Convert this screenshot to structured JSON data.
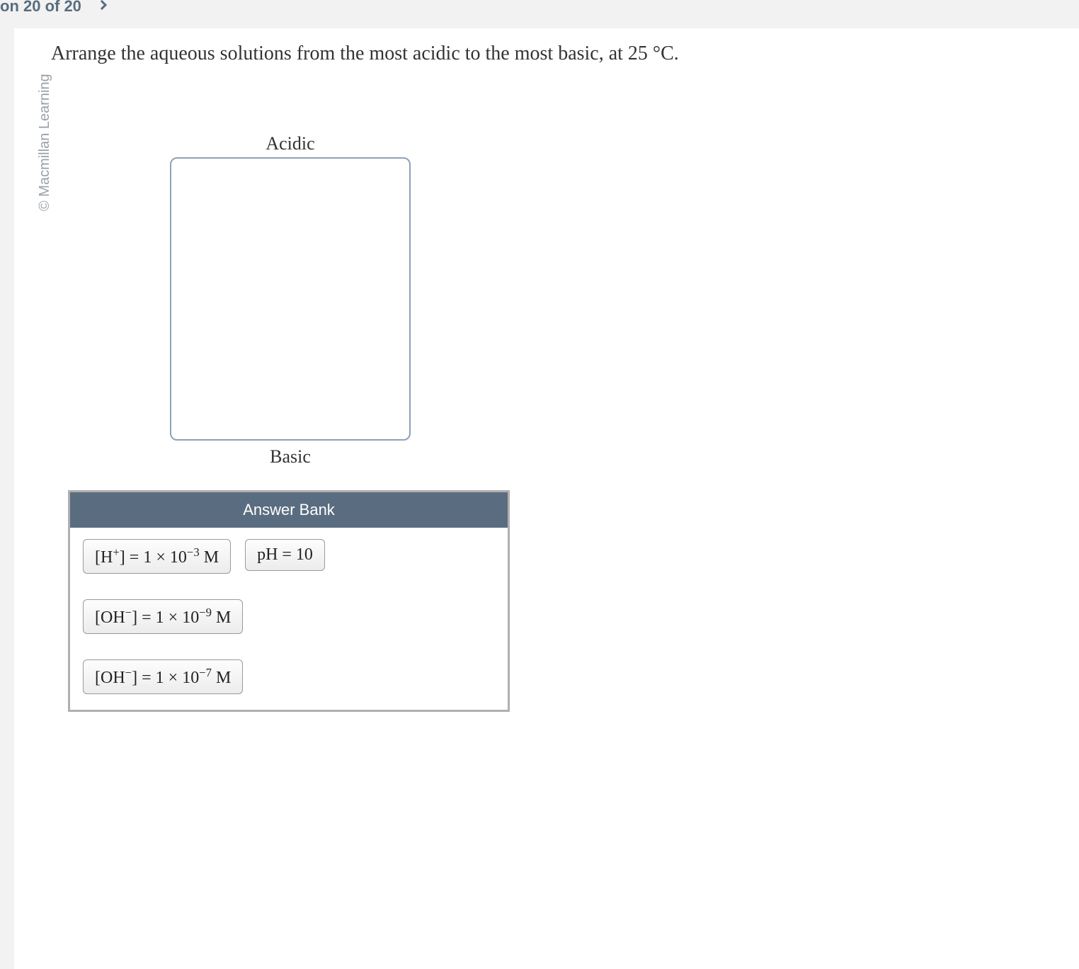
{
  "breadcrumb": {
    "progress": "on 20 of 20"
  },
  "watermark": "© Macmillan Learning",
  "prompt": "Arrange the aqueous solutions from the most acidic to the most basic, at 25 °C.",
  "zone": {
    "top_label": "Acidic",
    "bottom_label": "Basic",
    "border_color": "#8fa2b5",
    "background": "#ffffff"
  },
  "answer_bank": {
    "header": "Answer Bank",
    "header_bg": "#5a6d80",
    "header_text_color": "#ffffff",
    "border_color": "#b0b0b0",
    "chips": [
      {
        "id": "h-plus",
        "html": "[H<sup>+</sup>] = 1 × 10<sup>−3</sup> M"
      },
      {
        "id": "ph-10",
        "html": "pH = 10"
      },
      {
        "id": "oh-9",
        "html": "[OH<sup>−</sup>] = 1 × 10<sup>−9</sup> M"
      },
      {
        "id": "oh-7",
        "html": "[OH<sup>−</sup>] = 1 × 10<sup>−7</sup> M"
      }
    ],
    "rows": [
      [
        0,
        1
      ],
      [
        2
      ],
      [
        3
      ]
    ]
  },
  "colors": {
    "page_bg": "#f2f2f2",
    "card_bg": "#ffffff",
    "text": "#333333",
    "breadcrumb": "#5a6d80"
  }
}
